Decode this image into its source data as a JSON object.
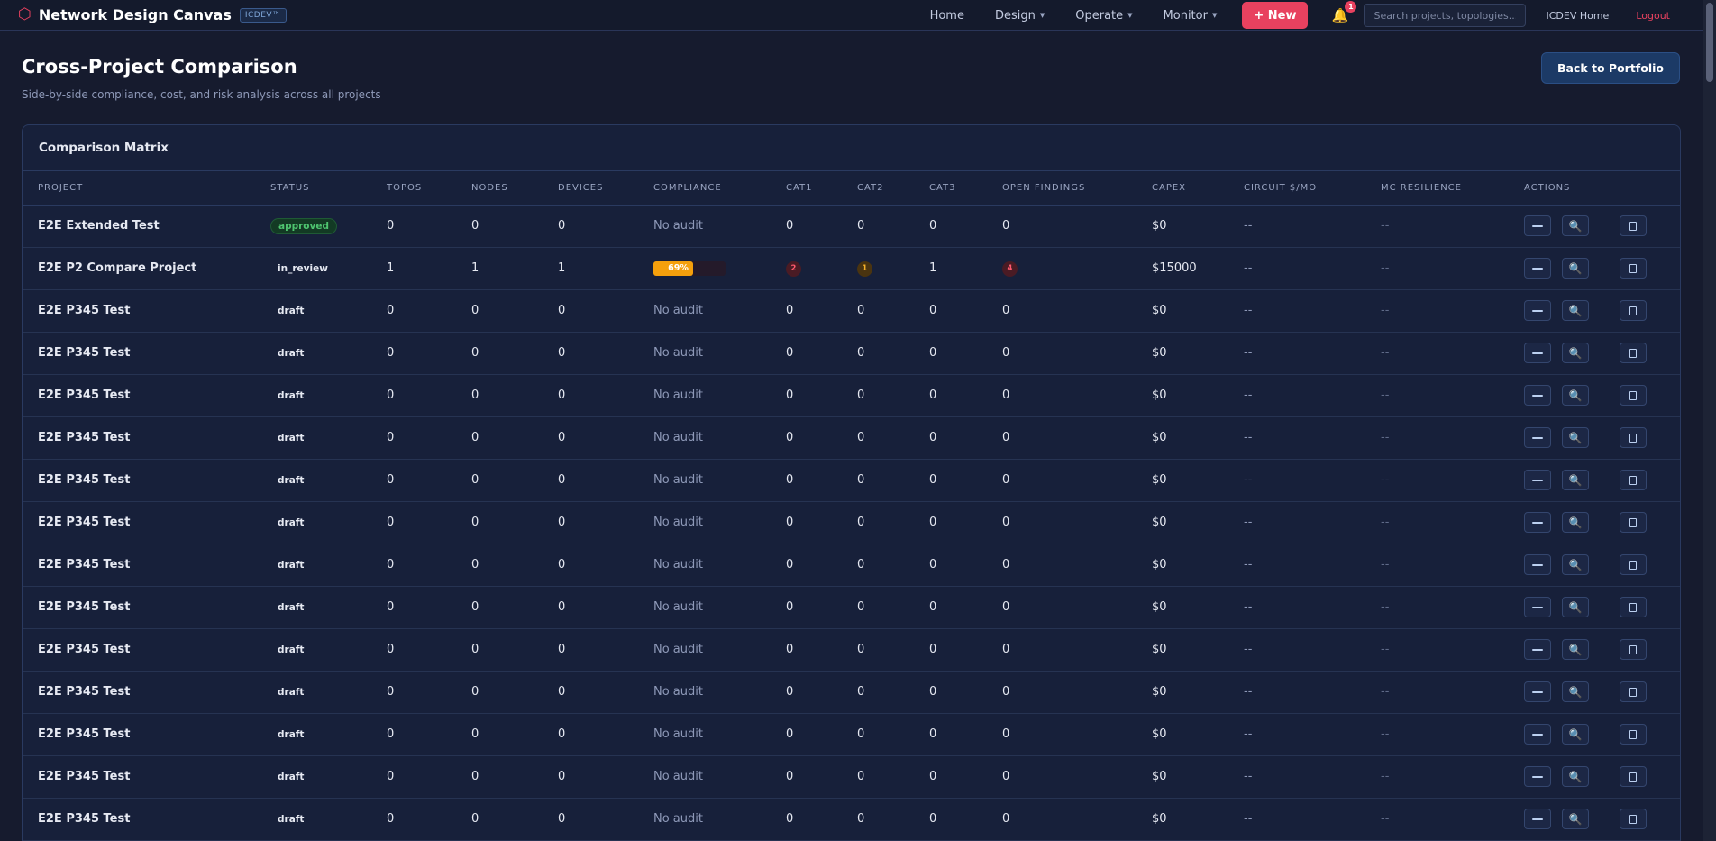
{
  "nav": {
    "brand_icon": "⬡",
    "brand_title": "Network Design Canvas",
    "brand_tag": "ICDEV™",
    "links": [
      {
        "label": "Home",
        "caret": false
      },
      {
        "label": "Design",
        "caret": true
      },
      {
        "label": "Operate",
        "caret": true
      },
      {
        "label": "Monitor",
        "caret": true
      }
    ],
    "new_label": "+ New",
    "notification_count": "1",
    "search_placeholder": "Search projects, topologies...",
    "icdev_home_label": "ICDEV Home",
    "logout_label": "Logout"
  },
  "header": {
    "title": "Cross-Project Comparison",
    "subtitle": "Side-by-side compliance, cost, and risk analysis across all projects",
    "back_label": "Back to Portfolio"
  },
  "matrix": {
    "title": "Comparison Matrix",
    "columns": [
      "PROJECT",
      "STATUS",
      "TOPOS",
      "NODES",
      "DEVICES",
      "COMPLIANCE",
      "CAT1",
      "CAT2",
      "CAT3",
      "OPEN FINDINGS",
      "CAPEX",
      "CIRCUIT $/MO",
      "MC RESILIENCE",
      "ACTIONS"
    ],
    "rows": [
      {
        "project": "E2E Extended Test",
        "status": "approved",
        "topos": "0",
        "nodes": "0",
        "devices": "0",
        "compliance": "No audit",
        "cat1": "0",
        "cat2": "0",
        "cat3": "0",
        "open_findings": "0",
        "capex": "$0",
        "circuit": "--",
        "mc": "--"
      },
      {
        "project": "E2E P2 Compare Project",
        "status": "in_review",
        "topos": "1",
        "nodes": "1",
        "devices": "1",
        "compliance": "69%",
        "compliance_pct": 69,
        "cat1": "2",
        "cat2": "1",
        "cat3": "1",
        "open_findings": "4",
        "capex": "$15000",
        "circuit": "--",
        "mc": "--"
      },
      {
        "project": "E2E P345 Test",
        "status": "draft",
        "topos": "0",
        "nodes": "0",
        "devices": "0",
        "compliance": "No audit",
        "cat1": "0",
        "cat2": "0",
        "cat3": "0",
        "open_findings": "0",
        "capex": "$0",
        "circuit": "--",
        "mc": "--"
      },
      {
        "project": "E2E P345 Test",
        "status": "draft",
        "topos": "0",
        "nodes": "0",
        "devices": "0",
        "compliance": "No audit",
        "cat1": "0",
        "cat2": "0",
        "cat3": "0",
        "open_findings": "0",
        "capex": "$0",
        "circuit": "--",
        "mc": "--"
      },
      {
        "project": "E2E P345 Test",
        "status": "draft",
        "topos": "0",
        "nodes": "0",
        "devices": "0",
        "compliance": "No audit",
        "cat1": "0",
        "cat2": "0",
        "cat3": "0",
        "open_findings": "0",
        "capex": "$0",
        "circuit": "--",
        "mc": "--"
      },
      {
        "project": "E2E P345 Test",
        "status": "draft",
        "topos": "0",
        "nodes": "0",
        "devices": "0",
        "compliance": "No audit",
        "cat1": "0",
        "cat2": "0",
        "cat3": "0",
        "open_findings": "0",
        "capex": "$0",
        "circuit": "--",
        "mc": "--"
      },
      {
        "project": "E2E P345 Test",
        "status": "draft",
        "topos": "0",
        "nodes": "0",
        "devices": "0",
        "compliance": "No audit",
        "cat1": "0",
        "cat2": "0",
        "cat3": "0",
        "open_findings": "0",
        "capex": "$0",
        "circuit": "--",
        "mc": "--"
      },
      {
        "project": "E2E P345 Test",
        "status": "draft",
        "topos": "0",
        "nodes": "0",
        "devices": "0",
        "compliance": "No audit",
        "cat1": "0",
        "cat2": "0",
        "cat3": "0",
        "open_findings": "0",
        "capex": "$0",
        "circuit": "--",
        "mc": "--"
      },
      {
        "project": "E2E P345 Test",
        "status": "draft",
        "topos": "0",
        "nodes": "0",
        "devices": "0",
        "compliance": "No audit",
        "cat1": "0",
        "cat2": "0",
        "cat3": "0",
        "open_findings": "0",
        "capex": "$0",
        "circuit": "--",
        "mc": "--"
      },
      {
        "project": "E2E P345 Test",
        "status": "draft",
        "topos": "0",
        "nodes": "0",
        "devices": "0",
        "compliance": "No audit",
        "cat1": "0",
        "cat2": "0",
        "cat3": "0",
        "open_findings": "0",
        "capex": "$0",
        "circuit": "--",
        "mc": "--"
      },
      {
        "project": "E2E P345 Test",
        "status": "draft",
        "topos": "0",
        "nodes": "0",
        "devices": "0",
        "compliance": "No audit",
        "cat1": "0",
        "cat2": "0",
        "cat3": "0",
        "open_findings": "0",
        "capex": "$0",
        "circuit": "--",
        "mc": "--"
      },
      {
        "project": "E2E P345 Test",
        "status": "draft",
        "topos": "0",
        "nodes": "0",
        "devices": "0",
        "compliance": "No audit",
        "cat1": "0",
        "cat2": "0",
        "cat3": "0",
        "open_findings": "0",
        "capex": "$0",
        "circuit": "--",
        "mc": "--"
      },
      {
        "project": "E2E P345 Test",
        "status": "draft",
        "topos": "0",
        "nodes": "0",
        "devices": "0",
        "compliance": "No audit",
        "cat1": "0",
        "cat2": "0",
        "cat3": "0",
        "open_findings": "0",
        "capex": "$0",
        "circuit": "--",
        "mc": "--"
      },
      {
        "project": "E2E P345 Test",
        "status": "draft",
        "topos": "0",
        "nodes": "0",
        "devices": "0",
        "compliance": "No audit",
        "cat1": "0",
        "cat2": "0",
        "cat3": "0",
        "open_findings": "0",
        "capex": "$0",
        "circuit": "--",
        "mc": "--"
      },
      {
        "project": "E2E P345 Test",
        "status": "draft",
        "topos": "0",
        "nodes": "0",
        "devices": "0",
        "compliance": "No audit",
        "cat1": "0",
        "cat2": "0",
        "cat3": "0",
        "open_findings": "0",
        "capex": "$0",
        "circuit": "--",
        "mc": "--"
      }
    ]
  },
  "colors": {
    "accent": "#e8415f",
    "background": "#161b2e",
    "card": "#17203a",
    "approved": "#4ec46f",
    "compliance_bar": "#f5a00c"
  },
  "icons": {
    "brand": "hexagon-icon",
    "notifications": "bell-icon",
    "row_actions": [
      "collapse-icon",
      "inspect-icon",
      "report-icon"
    ]
  }
}
